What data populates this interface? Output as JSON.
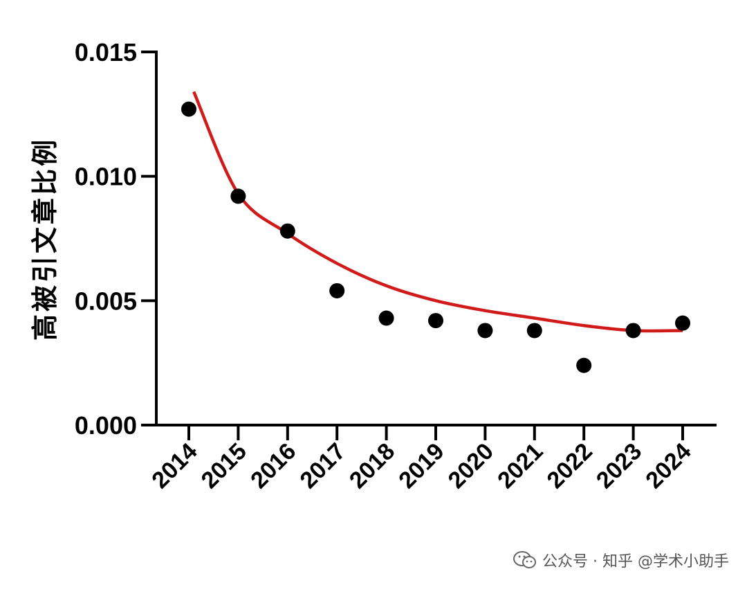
{
  "chart_data": {
    "type": "scatter",
    "title": "",
    "xlabel": "",
    "ylabel": "高被引文章比例",
    "categories": [
      "2014",
      "2015",
      "2016",
      "2017",
      "2018",
      "2019",
      "2020",
      "2021",
      "2022",
      "2023",
      "2024"
    ],
    "series": [
      {
        "values": [
          0.0127,
          0.0092,
          0.0078,
          0.0054,
          0.0043,
          0.0042,
          0.0038,
          0.0038,
          0.0024,
          0.0038,
          0.0041
        ]
      }
    ],
    "trendline": {
      "type": "curve fit",
      "color": "#d11a1a",
      "x": [
        2014.1,
        2015,
        2016,
        2017,
        2018,
        2019,
        2020,
        2021,
        2022,
        2023,
        2024
      ],
      "y": [
        0.0134,
        0.0093,
        0.0077,
        0.0065,
        0.0056,
        0.005,
        0.0046,
        0.0043,
        0.004,
        0.0038,
        0.0038
      ]
    },
    "ylim": [
      0,
      0.015
    ],
    "yticks": [
      "0.000",
      "0.005",
      "0.010",
      "0.015"
    ],
    "grid": false,
    "marker_color": "#000000"
  },
  "watermark": {
    "text": "公众号 · 知乎 @学术小助手",
    "icon": "wechat-icon"
  }
}
